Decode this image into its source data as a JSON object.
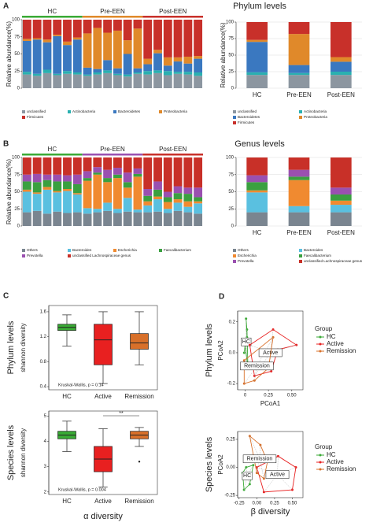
{
  "chart_data": [
    {
      "type": "stacked_bar",
      "panel_label": "A",
      "title": "Phylum levels",
      "ylabel": "Relative abundance(%)",
      "groups": [
        {
          "label": "HC",
          "n": 6,
          "color": "#3aaa35"
        },
        {
          "label": "Pre-EEN",
          "n": 6,
          "color": "#e0892a"
        },
        {
          "label": "Post-EEN",
          "n": 6,
          "color": "#c8302a"
        }
      ],
      "categories": [
        null,
        null,
        null,
        null,
        null,
        null,
        null,
        null,
        null,
        null,
        null,
        null,
        null,
        null,
        null,
        null,
        null,
        null
      ],
      "ylim": [
        0,
        100
      ],
      "yticks": [
        0,
        25,
        50,
        75,
        100
      ],
      "series": [
        {
          "name": "unclassified",
          "color": "#8c96a0",
          "values": [
            20,
            18,
            22,
            19,
            21,
            20,
            18,
            20,
            22,
            19,
            17,
            21,
            20,
            22,
            19,
            21,
            20,
            18
          ]
        },
        {
          "name": "Actinobacteria",
          "color": "#2ab0b0",
          "values": [
            4,
            3,
            5,
            2,
            4,
            3,
            2,
            3,
            4,
            2,
            3,
            2,
            5,
            4,
            6,
            3,
            4,
            5
          ]
        },
        {
          "name": "Bacteroidetes",
          "color": "#3a78c0",
          "values": [
            45,
            50,
            40,
            55,
            38,
            48,
            10,
            5,
            15,
            8,
            30,
            6,
            10,
            25,
            8,
            15,
            12,
            20
          ]
        },
        {
          "name": "Proteobacteria",
          "color": "#e0892a",
          "values": [
            3,
            2,
            4,
            2,
            5,
            3,
            50,
            60,
            40,
            55,
            20,
            58,
            8,
            5,
            12,
            6,
            10,
            4
          ]
        },
        {
          "name": "Firmicutes",
          "color": "#c8302a",
          "values": [
            28,
            27,
            29,
            22,
            32,
            26,
            20,
            12,
            19,
            16,
            30,
            13,
            57,
            44,
            55,
            55,
            54,
            53
          ]
        }
      ]
    },
    {
      "type": "stacked_bar",
      "ylabel": "Relative abundance(%)",
      "grid": true,
      "categories": [
        "HC",
        "Pre-EEN",
        "Post-EEN"
      ],
      "ylim": [
        0,
        100
      ],
      "yticks": [
        0,
        25,
        50,
        75,
        100
      ],
      "series": [
        {
          "name": "unclassified",
          "color": "#8c96a0",
          "values": [
            20,
            20,
            20
          ]
        },
        {
          "name": "Actinobacteria",
          "color": "#2ab0b0",
          "values": [
            4,
            3,
            5
          ]
        },
        {
          "name": "Bacteroidetes",
          "color": "#3a78c0",
          "values": [
            46,
            12,
            15
          ]
        },
        {
          "name": "Proteobacteria",
          "color": "#e0892a",
          "values": [
            3,
            47,
            7
          ]
        },
        {
          "name": "Firmicutes",
          "color": "#c8302a",
          "values": [
            27,
            18,
            53
          ]
        }
      ]
    },
    {
      "type": "stacked_bar",
      "panel_label": "B",
      "title": "Genus levels",
      "ylabel": "Relative abundance(%)",
      "groups": [
        {
          "label": "HC",
          "n": 6,
          "color": "#3aaa35"
        },
        {
          "label": "Pre-EEN",
          "n": 6,
          "color": "#9a50b0"
        },
        {
          "label": "Post-EEN",
          "n": 6,
          "color": "#c8302a"
        }
      ],
      "categories": [
        null,
        null,
        null,
        null,
        null,
        null,
        null,
        null,
        null,
        null,
        null,
        null,
        null,
        null,
        null,
        null,
        null,
        null
      ],
      "ylim": [
        0,
        100
      ],
      "yticks": [
        0,
        25,
        50,
        75,
        100
      ],
      "series": [
        {
          "name": "Others",
          "color": "#7a8590",
          "values": [
            20,
            22,
            18,
            21,
            19,
            20,
            18,
            20,
            22,
            19,
            21,
            20,
            20,
            21,
            19,
            22,
            20,
            18
          ]
        },
        {
          "name": "Bacteroides",
          "color": "#5ac0e0",
          "values": [
            30,
            25,
            35,
            28,
            32,
            26,
            8,
            5,
            12,
            6,
            20,
            4,
            10,
            18,
            6,
            12,
            8,
            15
          ]
        },
        {
          "name": "Escherichia",
          "color": "#f08a30",
          "values": [
            3,
            2,
            4,
            2,
            3,
            2,
            40,
            50,
            30,
            45,
            15,
            48,
            6,
            4,
            10,
            5,
            8,
            3
          ]
        },
        {
          "name": "Faecalibacterium",
          "color": "#3aa040",
          "values": [
            12,
            15,
            10,
            14,
            11,
            13,
            4,
            3,
            6,
            5,
            8,
            4,
            8,
            10,
            7,
            9,
            11,
            6
          ]
        },
        {
          "name": "Prevotella",
          "color": "#9a50b0",
          "values": [
            10,
            12,
            8,
            10,
            9,
            14,
            10,
            8,
            12,
            10,
            14,
            8,
            10,
            12,
            8,
            10,
            9,
            14
          ]
        },
        {
          "name": "unclassified Lachnospiraceae genus",
          "color": "#c83028",
          "values": [
            25,
            24,
            25,
            25,
            26,
            25,
            20,
            14,
            18,
            15,
            22,
            16,
            46,
            35,
            50,
            42,
            44,
            44
          ]
        }
      ]
    },
    {
      "type": "stacked_bar",
      "grid": true,
      "categories": [
        "HC",
        "Pre-EEN",
        "Post-EEN"
      ],
      "ylim": [
        0,
        100
      ],
      "yticks": [
        0,
        25,
        50,
        75,
        100
      ],
      "series": [
        {
          "name": "Others",
          "color": "#7a8590",
          "values": [
            20,
            20,
            20
          ]
        },
        {
          "name": "Bacteroides",
          "color": "#5ac0e0",
          "values": [
            29,
            9,
            11
          ]
        },
        {
          "name": "Escherichia",
          "color": "#f08a30",
          "values": [
            3,
            38,
            6
          ]
        },
        {
          "name": "Faecalibacterium",
          "color": "#3aa040",
          "values": [
            12,
            5,
            9
          ]
        },
        {
          "name": "Prevotella",
          "color": "#9a50b0",
          "values": [
            10,
            10,
            10
          ]
        },
        {
          "name": "unclassified Lachnospiraceae genus",
          "color": "#c83028",
          "values": [
            26,
            18,
            44
          ]
        }
      ]
    },
    {
      "type": "box",
      "panel_label": "C",
      "row_label": "Phylum levels",
      "ylabel": "shannon diversity",
      "annotation": "Kruskal-Wallis, p = 0.14",
      "categories": [
        "HC",
        "Active",
        "Remission"
      ],
      "colors": [
        "#3aaa35",
        "#e82020",
        "#d8702a"
      ],
      "ylim": [
        0.35,
        1.7
      ],
      "yticks": [
        0.4,
        0.8,
        1.2,
        1.6
      ],
      "boxes": [
        {
          "min": 1.05,
          "q1": 1.3,
          "median": 1.35,
          "q3": 1.4,
          "max": 1.55,
          "outliers": []
        },
        {
          "min": 0.45,
          "q1": 0.75,
          "median": 1.15,
          "q3": 1.4,
          "max": 1.6,
          "outliers": []
        },
        {
          "min": 0.75,
          "q1": 1.0,
          "median": 1.1,
          "q3": 1.25,
          "max": 1.6,
          "outliers": []
        }
      ]
    },
    {
      "type": "box",
      "row_label": "Species levels",
      "ylabel": "shannon diversity",
      "xlabel": "α diversity",
      "annotation": "Kruskal-Wallis, p = 0.004",
      "significance": "**",
      "categories": [
        "HC",
        "Active",
        "Remission"
      ],
      "colors": [
        "#3aaa35",
        "#e82020",
        "#d8702a"
      ],
      "ylim": [
        1.9,
        5.2
      ],
      "yticks": [
        2,
        3,
        4,
        5
      ],
      "boxes": [
        {
          "min": 3.6,
          "q1": 4.1,
          "median": 4.25,
          "q3": 4.4,
          "max": 4.8,
          "outliers": []
        },
        {
          "min": 2.2,
          "q1": 2.8,
          "median": 3.3,
          "q3": 3.8,
          "max": 4.5,
          "outliers": []
        },
        {
          "min": 3.8,
          "q1": 4.1,
          "median": 4.25,
          "q3": 4.4,
          "max": 4.55,
          "outliers": [
            3.2
          ]
        }
      ]
    },
    {
      "type": "scatter",
      "panel_label": "D",
      "row_label": "Phylum levels",
      "xlabel": "PCoA1",
      "ylabel": "PCoA2",
      "legend_title": "Group",
      "xlim": [
        -0.08,
        0.62
      ],
      "xticks": [
        {
          "value": 0,
          "label": "0"
        },
        0.25,
        {
          "value": 0.5,
          "label": "0.50"
        }
      ],
      "ylim": [
        -0.24,
        0.27
      ],
      "yticks": [
        -0.2,
        {
          "value": 0,
          "label": "0.0"
        },
        0.2
      ],
      "series": [
        {
          "name": "HC",
          "color": "#3aaa35",
          "x": [
            0.01,
            0.02,
            0.03,
            0.0,
            -0.01,
            0.02
          ],
          "y": [
            0.22,
            0.15,
            -0.1,
            0.05,
            0.0,
            0.1
          ]
        },
        {
          "name": "Active",
          "color": "#e82020",
          "x": [
            0.05,
            0.3,
            0.55,
            0.35,
            0.28,
            0.1
          ],
          "y": [
            0.05,
            0.15,
            0.05,
            0.02,
            -0.12,
            -0.15
          ]
        },
        {
          "name": "Remission",
          "color": "#d8702a",
          "x": [
            -0.01,
            0.3,
            0.25,
            0.1,
            -0.01
          ],
          "y": [
            -0.05,
            0.1,
            -0.1,
            -0.18,
            -0.2
          ]
        }
      ]
    },
    {
      "type": "scatter",
      "row_label": "Species levels",
      "ylabel": "PCoA2",
      "xlabel": "β diversity",
      "legend_title": "Group",
      "xlim": [
        -0.27,
        0.65
      ],
      "xticks": [
        -0.25,
        {
          "value": 0,
          "label": "0.00"
        },
        0.25,
        {
          "value": 0.5,
          "label": "0.50"
        }
      ],
      "ylim": [
        -0.27,
        0.32
      ],
      "yticks": [
        -0.25,
        {
          "value": 0,
          "label": "0.00"
        },
        0.25
      ],
      "series": [
        {
          "name": "HC",
          "color": "#3aaa35",
          "x": [
            -0.2,
            -0.15,
            -0.05,
            -0.1,
            -0.18
          ],
          "y": [
            -0.05,
            0.0,
            0.02,
            -0.15,
            -0.2
          ]
        },
        {
          "name": "Active",
          "color": "#e82020",
          "x": [
            0.0,
            0.3,
            0.55,
            0.5,
            0.1
          ],
          "y": [
            0.0,
            0.1,
            0.0,
            -0.2,
            -0.22
          ]
        },
        {
          "name": "Remission",
          "color": "#d8702a",
          "x": [
            -0.1,
            0.05,
            0.15,
            0.1,
            0.0
          ],
          "y": [
            0.28,
            0.2,
            0.05,
            -0.1,
            -0.05
          ]
        }
      ]
    }
  ]
}
